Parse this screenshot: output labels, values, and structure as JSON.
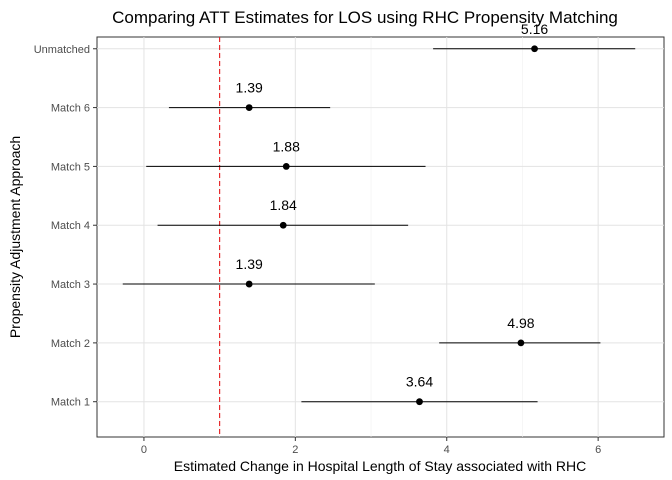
{
  "chart_data": {
    "type": "scatter",
    "title": "Comparing ATT Estimates for LOS using RHC Propensity Matching",
    "xlabel": "Estimated Change in Hospital Length of Stay associated with RHC",
    "ylabel": "Propensity Adjustment Approach",
    "categories": [
      "Match 1",
      "Match 2",
      "Match 3",
      "Match 4",
      "Match 5",
      "Match 6",
      "Unmatched"
    ],
    "estimates": [
      3.64,
      4.98,
      1.39,
      1.84,
      1.88,
      1.39,
      5.16
    ],
    "estimate_labels": [
      "3.64",
      "4.98",
      "1.39",
      "1.84",
      "1.88",
      "1.39",
      "5.16"
    ],
    "lower": [
      2.08,
      3.9,
      -0.28,
      0.18,
      0.03,
      0.33,
      3.82
    ],
    "upper": [
      5.2,
      6.03,
      3.05,
      3.49,
      3.72,
      2.46,
      6.49
    ],
    "xlim": [
      -0.62,
      6.87
    ],
    "xticks": [
      0,
      2,
      4,
      6
    ],
    "xtick_labels": [
      "0",
      "2",
      "4",
      "6"
    ],
    "reference_line": {
      "x": 1,
      "color": "#e41a1c",
      "style": "dashed"
    },
    "point_color": "#000000",
    "grid": true
  }
}
